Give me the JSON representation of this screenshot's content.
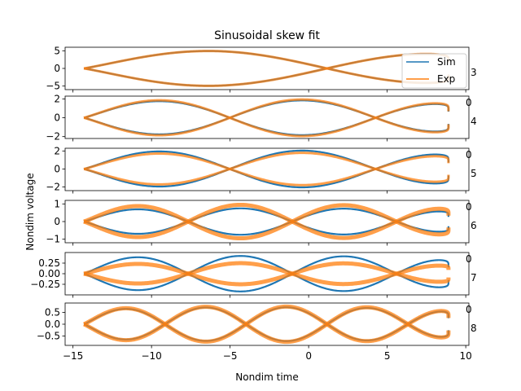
{
  "colors": {
    "sim": "#1f77b4",
    "exp": "#ff7f0e"
  },
  "chart_data": {
    "type": "line",
    "title": "Sinusoidal skew fit",
    "xlabel": "Nondim time",
    "ylabel": "Nondim voltage",
    "xlim": [
      -15.5,
      10.2
    ],
    "x_ticks": [
      -15,
      -10,
      -5,
      0,
      5,
      10
    ],
    "x_tick_labels": [
      "−15",
      "−10",
      "−5",
      "0",
      "5",
      "10"
    ],
    "legend": {
      "placement": "top-right",
      "entries": [
        "Sim",
        "Exp"
      ]
    },
    "grid": false,
    "panels": [
      {
        "side_label": "3",
        "ylim": [
          -6,
          6
        ],
        "y_ticks": [
          -5,
          0,
          5
        ],
        "y_tick_labels": [
          "−5",
          "0",
          "5"
        ],
        "series": [
          {
            "name": "Sim",
            "amp": 5.0,
            "phase": 0.0,
            "x": [
              -14.3,
              -12.0,
              -9.0,
              -7.0,
              -5.0,
              -3.0,
              -1.0,
              1.0,
              3.0,
              5.0,
              7.0,
              8.9
            ],
            "min_arc": [
              -4.8,
              -4.6,
              -3.5,
              -2.0,
              -1.0,
              -0.2,
              0.6,
              1.8,
              3.0,
              4.5,
              4.8,
              4.8
            ],
            "max_arc": [
              4.8,
              4.6,
              3.5,
              2.0,
              1.0,
              0.2,
              -0.6,
              -1.8,
              -3.0,
              -4.5,
              -4.8,
              -4.8
            ]
          },
          {
            "name": "Exp",
            "amp": 5.0,
            "phase": 0.0
          }
        ]
      },
      {
        "side_label": "4",
        "ylim": [
          -2.2,
          2.3
        ],
        "y_ticks": [
          -2,
          0,
          2
        ],
        "y_tick_labels": [
          "−2",
          "0",
          "2"
        ],
        "series": [
          {
            "name": "Sim",
            "amp": 1.85
          },
          {
            "name": "Exp",
            "amp": 1.95
          }
        ]
      },
      {
        "side_label": "5",
        "ylim": [
          -2.4,
          2.3
        ],
        "y_ticks": [
          -2,
          0,
          2
        ],
        "y_tick_labels": [
          "−2",
          "0",
          "2"
        ],
        "series": [
          {
            "name": "Sim",
            "amp": 2.05
          },
          {
            "name": "Exp",
            "amp": 1.8
          }
        ]
      },
      {
        "side_label": "6",
        "ylim": [
          -1.2,
          1.2
        ],
        "y_ticks": [
          -1,
          0,
          1
        ],
        "y_tick_labels": [
          "−1",
          "0",
          "1"
        ],
        "series": [
          {
            "name": "Sim",
            "amp": 0.75
          },
          {
            "name": "Exp",
            "amp": 0.95
          }
        ]
      },
      {
        "side_label": "7",
        "ylim": [
          -0.5,
          0.5
        ],
        "y_ticks": [
          -0.25,
          0.0,
          0.25
        ],
        "y_tick_labels": [
          "−0.25",
          "0.00",
          "0.25"
        ],
        "series": [
          {
            "name": "Sim",
            "amp": 0.42
          },
          {
            "name": "Exp",
            "amp": 0.25
          }
        ]
      },
      {
        "side_label": "8",
        "ylim": [
          -0.9,
          0.9
        ],
        "y_ticks": [
          -0.5,
          0.0,
          0.5
        ],
        "y_tick_labels": [
          "−0.5",
          "0.0",
          "0.5"
        ],
        "series": [
          {
            "name": "Sim",
            "amp": 0.72
          },
          {
            "name": "Exp",
            "amp": 0.75
          }
        ]
      }
    ],
    "clipped_corner_label": "0"
  }
}
